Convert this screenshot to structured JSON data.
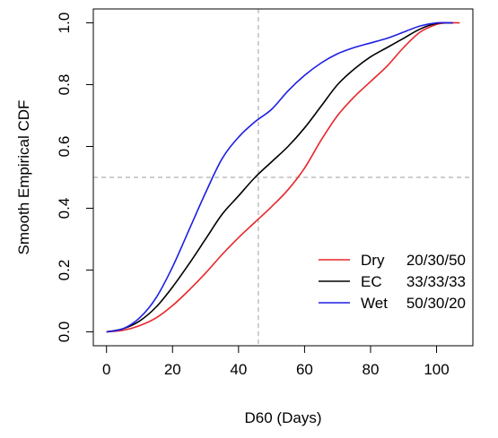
{
  "chart_data": {
    "type": "line",
    "title": "",
    "xlabel": "D60 (Days)",
    "ylabel": "Smooth Empirical CDF",
    "xlim": [
      -4,
      111
    ],
    "ylim": [
      -0.045,
      1.045
    ],
    "xticks": [
      0,
      20,
      40,
      60,
      80,
      100
    ],
    "yticks": [
      0.0,
      0.2,
      0.4,
      0.6,
      0.8,
      1.0
    ],
    "ytick_labels": [
      "0.0",
      "0.2",
      "0.4",
      "0.6",
      "0.8",
      "1.0"
    ],
    "grid": false,
    "reference_lines": {
      "x": 46,
      "y": 0.5,
      "style": "dashed",
      "color": "#b0b0b0"
    },
    "legend_position": "bottom-right",
    "series": [
      {
        "name": "Dry",
        "split": "20/30/50",
        "color": "#e8262a",
        "x": [
          0,
          5,
          10,
          15,
          20,
          25,
          30,
          35,
          40,
          45,
          50,
          55,
          60,
          65,
          70,
          75,
          80,
          85,
          90,
          95,
          100,
          103,
          107
        ],
        "y": [
          0.0,
          0.005,
          0.02,
          0.045,
          0.085,
          0.135,
          0.19,
          0.25,
          0.305,
          0.355,
          0.405,
          0.46,
          0.53,
          0.62,
          0.7,
          0.76,
          0.81,
          0.86,
          0.92,
          0.97,
          0.995,
          1.0,
          1.0
        ]
      },
      {
        "name": "EC",
        "split": "33/33/33",
        "color": "#000000",
        "x": [
          0,
          5,
          10,
          15,
          20,
          25,
          30,
          35,
          40,
          45,
          50,
          55,
          60,
          65,
          70,
          75,
          80,
          85,
          90,
          95,
          100,
          105
        ],
        "y": [
          0.0,
          0.01,
          0.035,
          0.08,
          0.145,
          0.22,
          0.3,
          0.38,
          0.44,
          0.5,
          0.55,
          0.6,
          0.66,
          0.73,
          0.8,
          0.85,
          0.89,
          0.92,
          0.95,
          0.98,
          0.998,
          1.0
        ]
      },
      {
        "name": "Wet",
        "split": "50/30/20",
        "color": "#1e1ee6",
        "x": [
          0,
          5,
          10,
          15,
          20,
          25,
          30,
          35,
          40,
          45,
          50,
          55,
          60,
          65,
          70,
          75,
          80,
          85,
          90,
          95,
          100,
          105
        ],
        "y": [
          0.0,
          0.01,
          0.045,
          0.11,
          0.21,
          0.33,
          0.45,
          0.56,
          0.63,
          0.68,
          0.72,
          0.78,
          0.83,
          0.87,
          0.9,
          0.92,
          0.935,
          0.95,
          0.97,
          0.99,
          1.0,
          1.0
        ]
      }
    ]
  }
}
